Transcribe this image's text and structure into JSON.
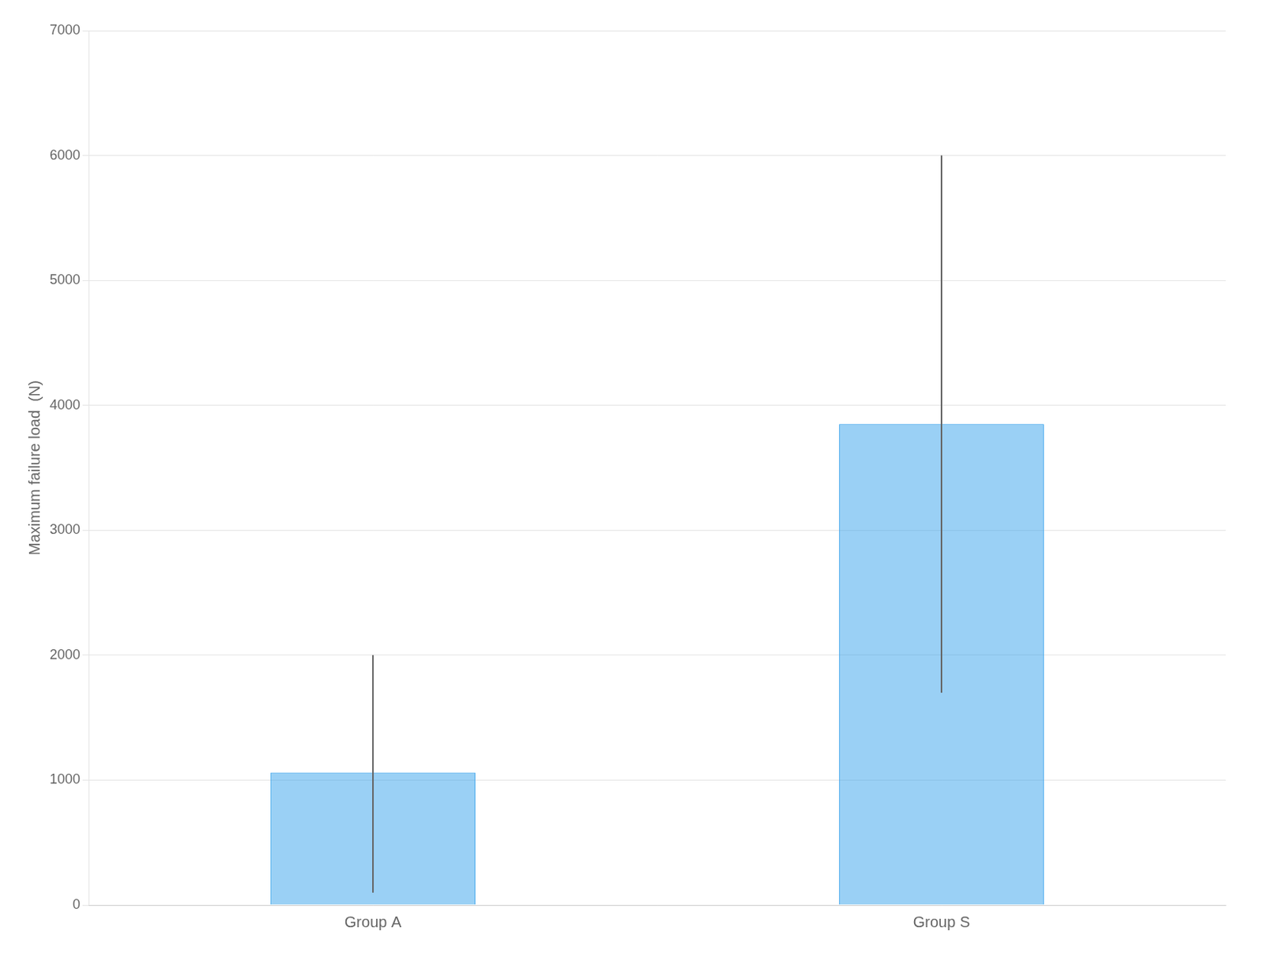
{
  "chart_data": {
    "type": "bar",
    "categories": [
      "Group A",
      "Group S"
    ],
    "values": [
      1060,
      3850
    ],
    "errors_upper": [
      940,
      2150
    ],
    "errors_lower": [
      960,
      2150
    ],
    "ylabel": "Maximum failure load  (N)",
    "ylim": [
      0,
      7000
    ],
    "yticks": [
      0,
      1000,
      2000,
      3000,
      4000,
      5000,
      6000,
      7000
    ],
    "grid": true
  }
}
